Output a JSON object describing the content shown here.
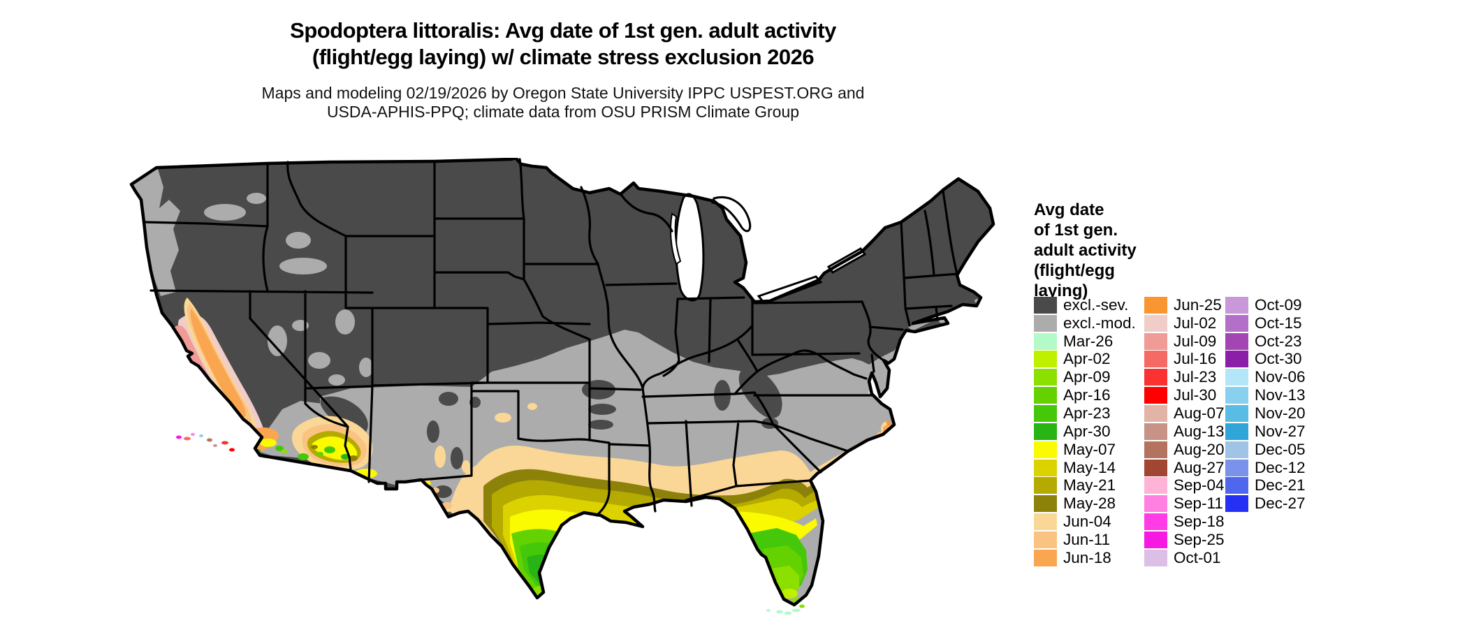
{
  "title": {
    "line1": "Spodoptera littoralis: Avg date of 1st gen. adult activity",
    "line2": "(flight/egg laying) w/ climate stress exclusion 2026"
  },
  "subtitle": {
    "line1": "Maps and modeling 02/19/2026 by Oregon State University IPPC USPEST.ORG and",
    "line2": "USDA-APHIS-PPQ; climate data from OSU PRISM Climate Group"
  },
  "legend": {
    "title_lines": [
      "Avg date",
      "of 1st gen.",
      "adult activity",
      "(flight/egg",
      "laying)"
    ],
    "columns": [
      [
        {
          "label": "excl.-sev.",
          "color": "#4a4a4a"
        },
        {
          "label": "excl.-mod.",
          "color": "#acacac"
        },
        {
          "label": "Mar-26",
          "color": "#b4fac8"
        },
        {
          "label": "Apr-02",
          "color": "#bef000"
        },
        {
          "label": "Apr-09",
          "color": "#8ce000"
        },
        {
          "label": "Apr-16",
          "color": "#64d200"
        },
        {
          "label": "Apr-23",
          "color": "#46c80a"
        },
        {
          "label": "Apr-30",
          "color": "#28b414"
        },
        {
          "label": "May-07",
          "color": "#fafa00"
        },
        {
          "label": "May-14",
          "color": "#dcd200"
        },
        {
          "label": "May-21",
          "color": "#b4aa00"
        },
        {
          "label": "May-28",
          "color": "#8c820a"
        },
        {
          "label": "Jun-04",
          "color": "#fad796"
        },
        {
          "label": "Jun-11",
          "color": "#fac382"
        },
        {
          "label": "Jun-18",
          "color": "#faa550"
        }
      ],
      [
        {
          "label": "Jun-25",
          "color": "#fa9632"
        },
        {
          "label": "Jul-02",
          "color": "#f0cdc8"
        },
        {
          "label": "Jul-09",
          "color": "#f09b96"
        },
        {
          "label": "Jul-16",
          "color": "#f56a64"
        },
        {
          "label": "Jul-23",
          "color": "#fa3232"
        },
        {
          "label": "Jul-30",
          "color": "#ff0000"
        },
        {
          "label": "Aug-07",
          "color": "#e1b4a5"
        },
        {
          "label": "Aug-13",
          "color": "#c89387"
        },
        {
          "label": "Aug-20",
          "color": "#b4735f"
        },
        {
          "label": "Aug-27",
          "color": "#a04632"
        },
        {
          "label": "Sep-04",
          "color": "#ffb4d7"
        },
        {
          "label": "Sep-11",
          "color": "#ff80e1"
        },
        {
          "label": "Sep-18",
          "color": "#ff3ce6"
        },
        {
          "label": "Sep-25",
          "color": "#f519e1"
        },
        {
          "label": "Oct-01",
          "color": "#dcbee6"
        }
      ],
      [
        {
          "label": "Oct-09",
          "color": "#c898d8"
        },
        {
          "label": "Oct-15",
          "color": "#b470c8"
        },
        {
          "label": "Oct-23",
          "color": "#a346b4"
        },
        {
          "label": "Oct-30",
          "color": "#8c1fa8"
        },
        {
          "label": "Nov-06",
          "color": "#b4e6fa"
        },
        {
          "label": "Nov-13",
          "color": "#87d0ee"
        },
        {
          "label": "Nov-20",
          "color": "#58bce4"
        },
        {
          "label": "Nov-27",
          "color": "#2fa6d7"
        },
        {
          "label": "Dec-05",
          "color": "#a0c4e6"
        },
        {
          "label": "Dec-12",
          "color": "#7b92eb"
        },
        {
          "label": "Dec-21",
          "color": "#4f66ef"
        },
        {
          "label": "Dec-27",
          "color": "#2630f5"
        }
      ]
    ]
  },
  "map": {
    "fills": {
      "background": "#ffffff",
      "excl_sev": "#4a4a4a",
      "excl_mod": "#acacac",
      "mar26": "#b4fac8",
      "apr02": "#bef000",
      "apr09": "#8ce000",
      "apr16": "#64d200",
      "apr23": "#46c80a",
      "apr30": "#28b414",
      "may07": "#fafa00",
      "may14": "#dcd200",
      "may21": "#b4aa00",
      "may28": "#8c820a",
      "jun04": "#fad796",
      "jun11": "#fac382",
      "jun18": "#faa550",
      "jun25": "#fa9632",
      "jul02": "#f0cdc8",
      "jul09": "#f09b96",
      "jul16": "#f56a64",
      "jul23": "#fa3232",
      "jul30": "#ff0000",
      "aug13": "#c89387",
      "aug20": "#b4735f",
      "sep11": "#ff80e1",
      "sep25": "#f519e1",
      "nov13": "#87d0ee",
      "border": "#000000",
      "water": "#ffffff"
    }
  }
}
